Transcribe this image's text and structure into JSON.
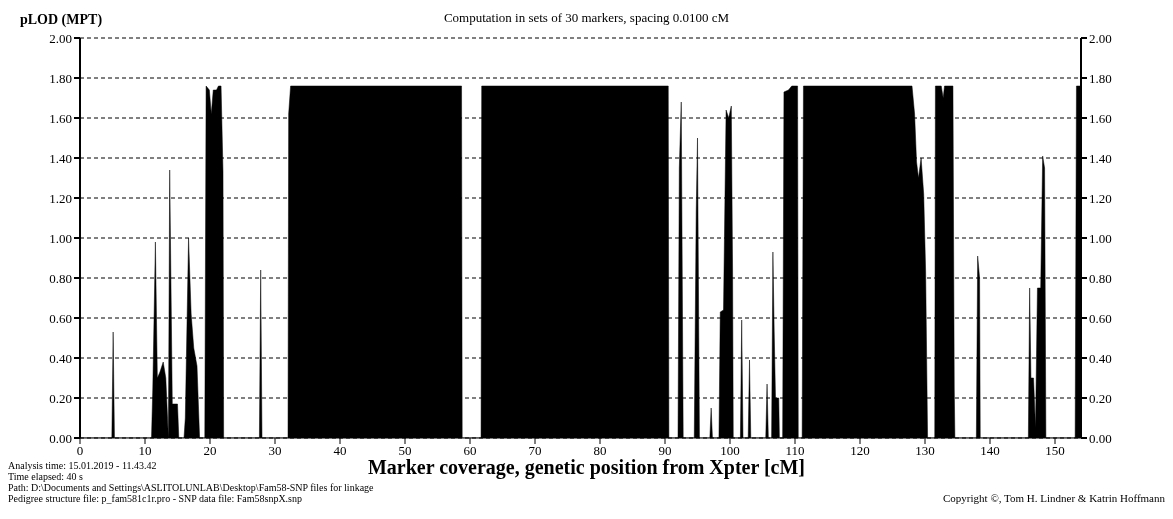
{
  "chart_data": {
    "type": "area",
    "title": "Computation in sets of 30 markers, spacing 0.0100 cM",
    "xlabel": "Marker coverage, genetic position from Xpter [cM]",
    "ylabel": "pLOD (MPT)",
    "xlim": [
      0,
      154
    ],
    "xticks": [
      0,
      10,
      20,
      30,
      40,
      50,
      60,
      70,
      80,
      90,
      100,
      110,
      120,
      130,
      140,
      150
    ],
    "ylim": [
      0,
      2
    ],
    "yticks": [
      {
        "value": 0,
        "label": "0.00"
      },
      {
        "value": 0.2,
        "label": "0.20"
      },
      {
        "value": 0.4,
        "label": "0.40"
      },
      {
        "value": 0.6,
        "label": "0.60"
      },
      {
        "value": 0.8,
        "label": "0.80"
      },
      {
        "value": 1,
        "label": "1.00"
      },
      {
        "value": 1.2,
        "label": "1.20"
      },
      {
        "value": 1.4,
        "label": "1.40"
      },
      {
        "value": 1.6,
        "label": "1.60"
      },
      {
        "value": 1.8,
        "label": "1.80"
      },
      {
        "value": 2,
        "label": "2.00"
      }
    ],
    "y2lim": [
      0,
      2
    ],
    "y2ticks": [
      {
        "value": 0,
        "label": "0.00"
      },
      {
        "value": 0.2,
        "label": "0.20"
      },
      {
        "value": 0.4,
        "label": "0.40"
      },
      {
        "value": 0.6,
        "label": "0.60"
      },
      {
        "value": 0.8,
        "label": "0.80"
      },
      {
        "value": 1,
        "label": "1.00"
      },
      {
        "value": 1.2,
        "label": "1.20"
      },
      {
        "value": 1.4,
        "label": "1.40"
      },
      {
        "value": 1.6,
        "label": "1.60"
      },
      {
        "value": 1.8,
        "label": "1.80"
      },
      {
        "value": 2,
        "label": "2.00"
      }
    ],
    "grid": "y",
    "line_style": "solid",
    "x": [
      0,
      4.9,
      5.1,
      5.3,
      11.0,
      11.2,
      11.6,
      11.9,
      12.3,
      12.8,
      13.2,
      13.6,
      13.8,
      14.2,
      15.0,
      15.2,
      16.0,
      16.2,
      16.7,
      17.1,
      17.5,
      18.0,
      18.4,
      19.2,
      19.4,
      19.9,
      20.2,
      20.5,
      21.0,
      21.3,
      21.7,
      22.0,
      22.1,
      27.6,
      27.8,
      28.0,
      32.0,
      32.1,
      32.4,
      58.7,
      58.8,
      61.7,
      61.8,
      90.5,
      90.6,
      92.0,
      92.2,
      92.5,
      92.8,
      94.5,
      94.8,
      95.0,
      95.2,
      95.3,
      96.9,
      97.1,
      97.3,
      98.3,
      98.5,
      99.0,
      99.4,
      99.8,
      100.2,
      100.4,
      100.5,
      101.6,
      101.8,
      102.0,
      102.8,
      103.0,
      103.2,
      105.5,
      105.7,
      105.9,
      106.4,
      106.6,
      106.8,
      107.0,
      107.5,
      107.6,
      108.1,
      108.3,
      109.0,
      109.5,
      110.4,
      110.5,
      111.1,
      111.3,
      128.0,
      128.4,
      128.7,
      129.0,
      129.4,
      129.8,
      130.1,
      130.4,
      131.5,
      131.6,
      132.5,
      132.8,
      133.0,
      134.3,
      134.5,
      134.6,
      137.9,
      138.1,
      138.4,
      138.5,
      145.9,
      146.1,
      146.3,
      146.7,
      147.0,
      147.3,
      147.8,
      148.1,
      148.4,
      148.6,
      153.1,
      153.3,
      154
    ],
    "series": [
      {
        "color": "#000000",
        "values": [
          0,
          0,
          0.53,
          0,
          0,
          0.25,
          0.98,
          0.3,
          0.33,
          0.38,
          0.3,
          0,
          1.34,
          0.17,
          0.17,
          0,
          0,
          0.1,
          1.0,
          0.62,
          0.45,
          0.36,
          0,
          0,
          1.76,
          1.74,
          1.62,
          1.74,
          1.74,
          1.76,
          1.76,
          1.33,
          0,
          0,
          0.84,
          0,
          0,
          1.62,
          1.76,
          1.76,
          0,
          0,
          1.76,
          1.76,
          0,
          0,
          1.35,
          1.68,
          0,
          0,
          1.13,
          1.5,
          0.5,
          0,
          0,
          0.15,
          0,
          0,
          0.63,
          0.64,
          1.64,
          1.6,
          1.66,
          0.83,
          0,
          0,
          0.59,
          0,
          0,
          0.39,
          0,
          0,
          0.27,
          0,
          0,
          0.93,
          0.53,
          0.2,
          0.2,
          0,
          0,
          1.73,
          1.74,
          1.76,
          1.76,
          0,
          0,
          1.76,
          1.76,
          1.62,
          1.38,
          1.3,
          1.4,
          1.22,
          0.83,
          0,
          0,
          1.76,
          1.76,
          1.7,
          1.76,
          1.76,
          0.25,
          0,
          0,
          0.91,
          0.8,
          0,
          0,
          0.75,
          0.3,
          0.3,
          0.05,
          0.75,
          0.75,
          1.41,
          1.35,
          0,
          0,
          1.76,
          1.76
        ]
      }
    ],
    "annotations": [
      "Analysis time: 15.01.2019 - 11.43.42",
      "Time elapsed: 40 s",
      "Path: D:\\Documents and Settings\\ASLITOLUNLAB\\Desktop\\Fam58-SNP files for linkage",
      "Pedigree structure file: p_fam581c1r.pro - SNP data file: Fam58snpX.snp",
      "Copyright ©, Tom H. Lindner & Katrin Hoffmann"
    ]
  }
}
